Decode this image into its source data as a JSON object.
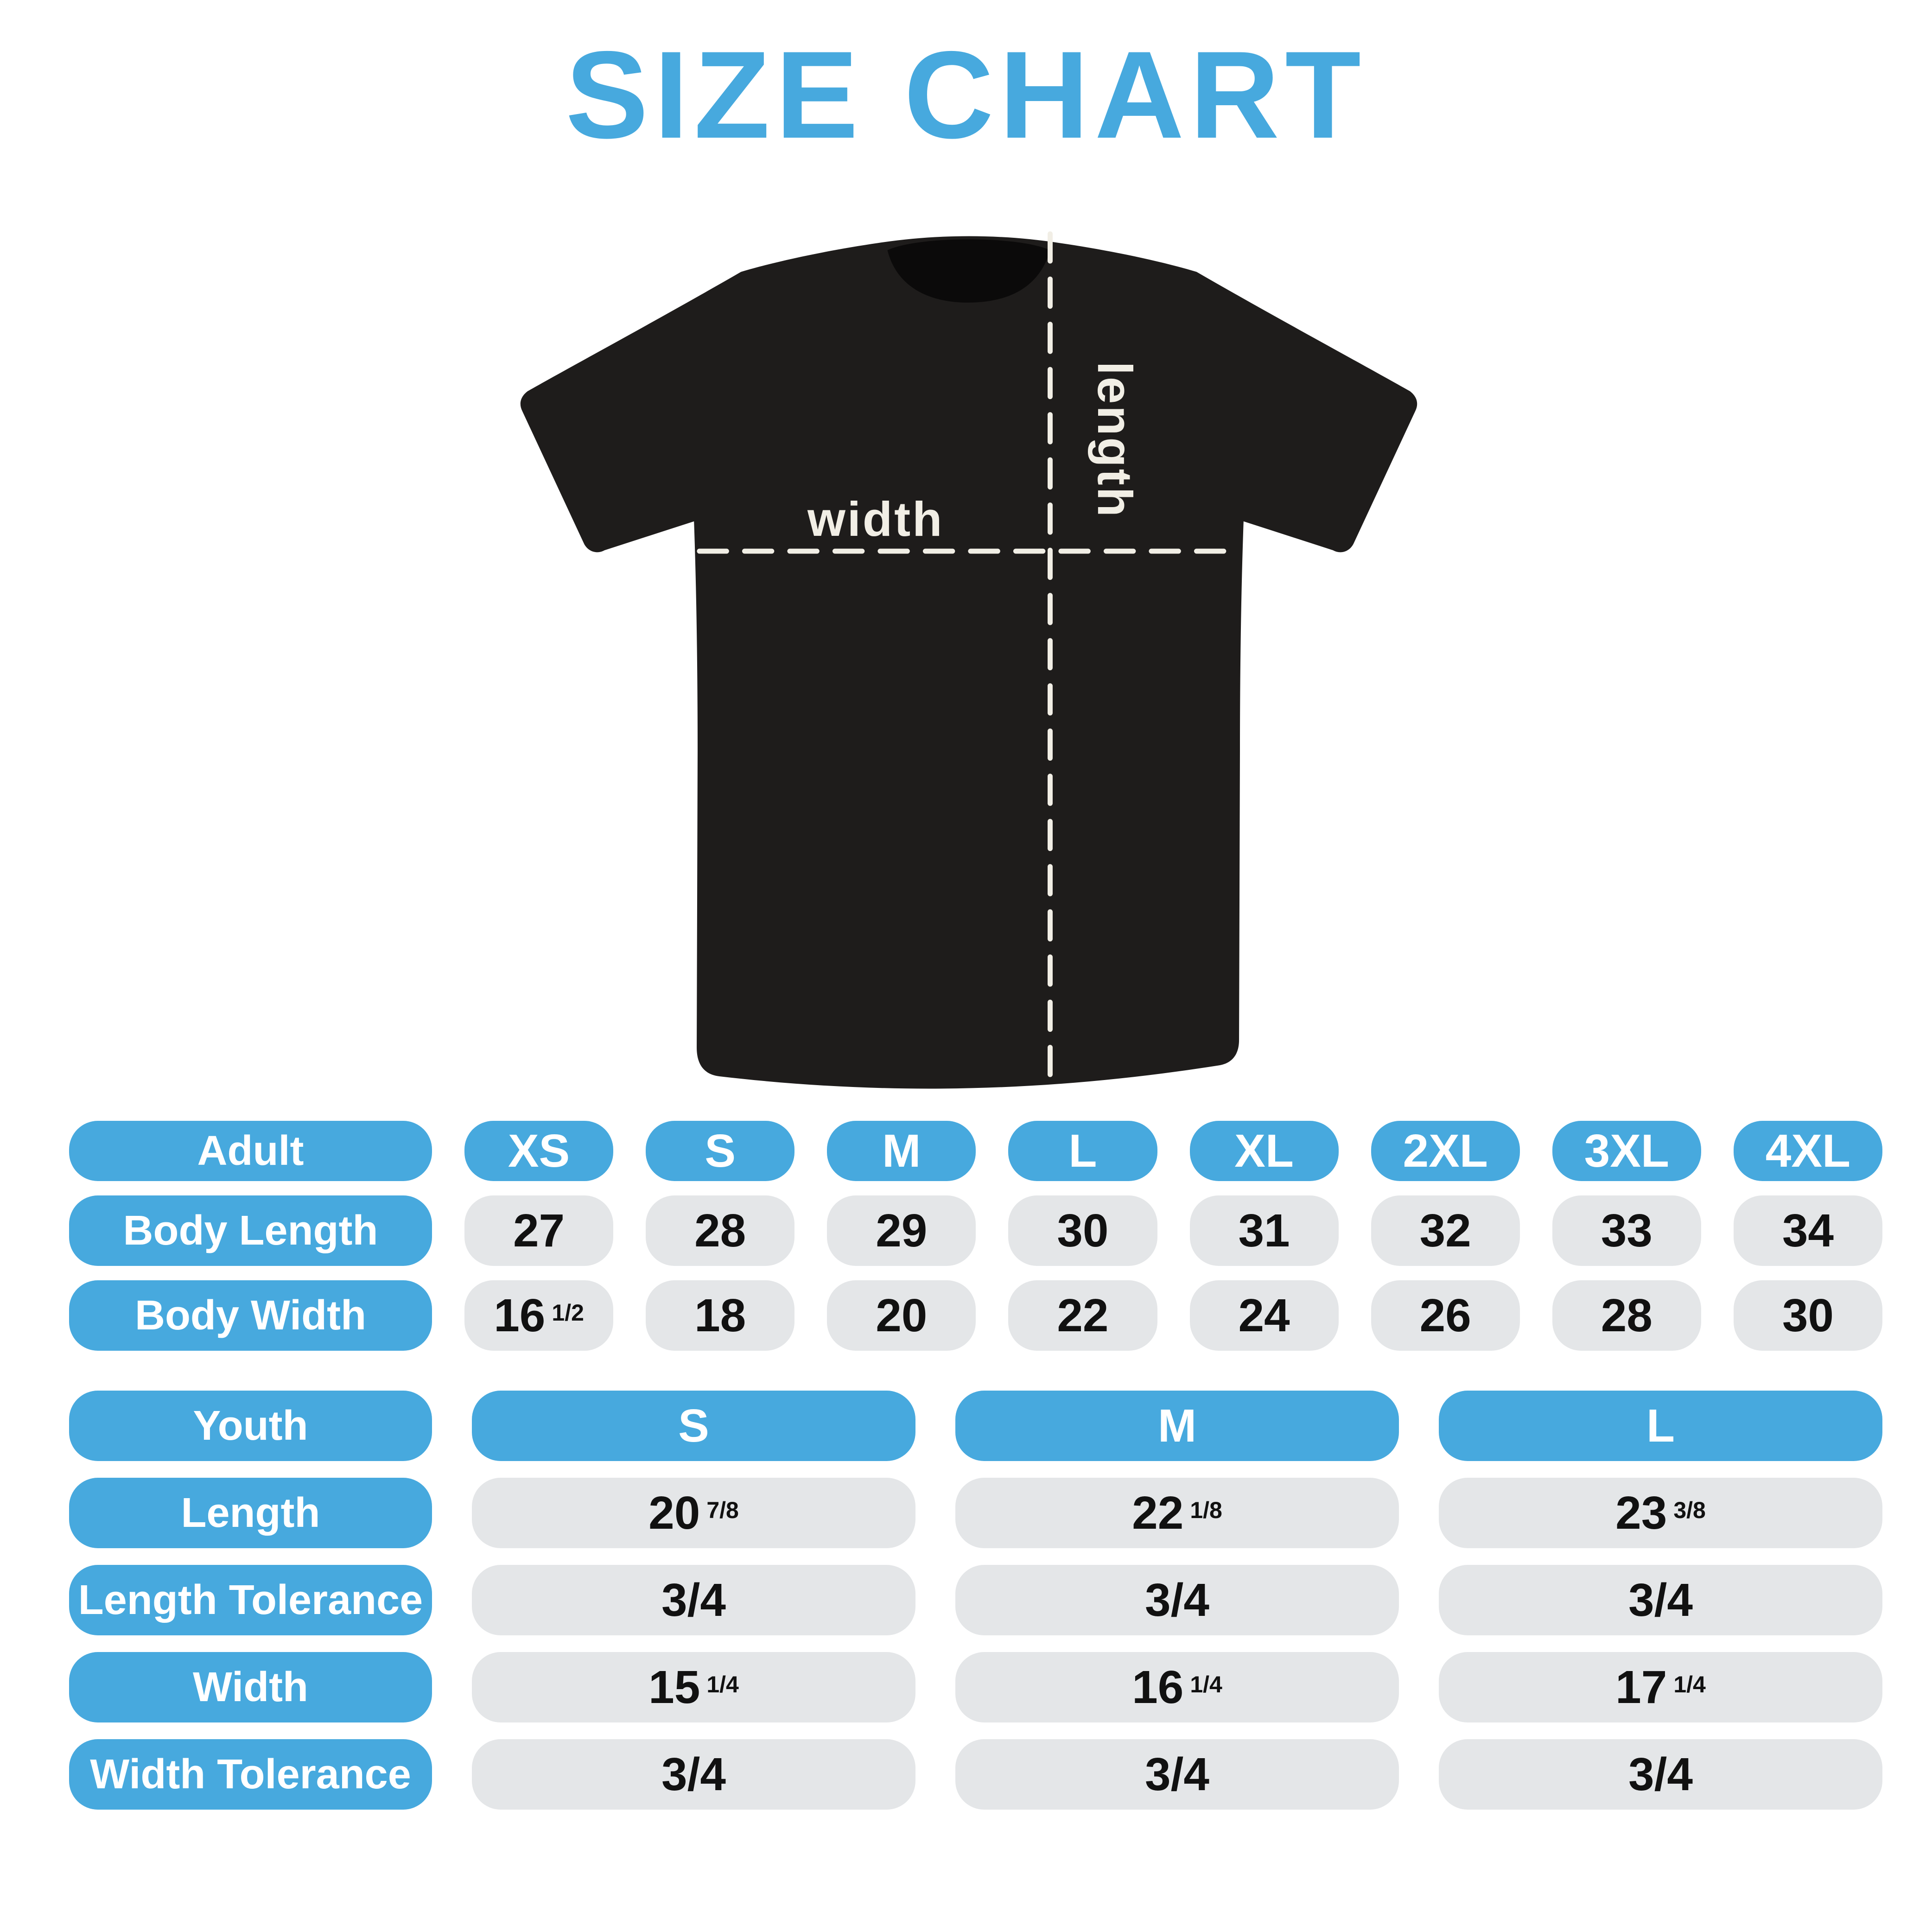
{
  "title": "SIZE CHART",
  "shirt": {
    "width_label": "width",
    "length_label": "length"
  },
  "colors": {
    "accent": "#47A9DE",
    "pill_gray": "#E4E6E8",
    "value_text": "#111111",
    "header_text": "#FFFFFF",
    "shirt": "#1E1C1B",
    "collar": "#0B0A0A",
    "cream": "#F1EEE5",
    "background": "#FFFFFF"
  },
  "chart_data": [
    {
      "type": "table",
      "title": "Adult",
      "columns": [
        "Adult",
        "XS",
        "S",
        "M",
        "L",
        "XL",
        "2XL",
        "3XL",
        "4XL"
      ],
      "rows": [
        [
          "Body Length",
          "27",
          "28",
          "29",
          "30",
          "31",
          "32",
          "33",
          "34"
        ],
        [
          "Body Width",
          "16 1/2",
          "18",
          "20",
          "22",
          "24",
          "26",
          "28",
          "30"
        ]
      ]
    },
    {
      "type": "table",
      "title": "Youth",
      "columns": [
        "Youth",
        "S",
        "M",
        "L"
      ],
      "rows": [
        [
          "Length",
          "20 7/8",
          "22 1/8",
          "23 3/8"
        ],
        [
          "Length Tolerance",
          "3/4",
          "3/4",
          "3/4"
        ],
        [
          "Width",
          "15 1/4",
          "16 1/4",
          "17 1/4"
        ],
        [
          "Width Tolerance",
          "3/4",
          "3/4",
          "3/4"
        ]
      ]
    }
  ]
}
